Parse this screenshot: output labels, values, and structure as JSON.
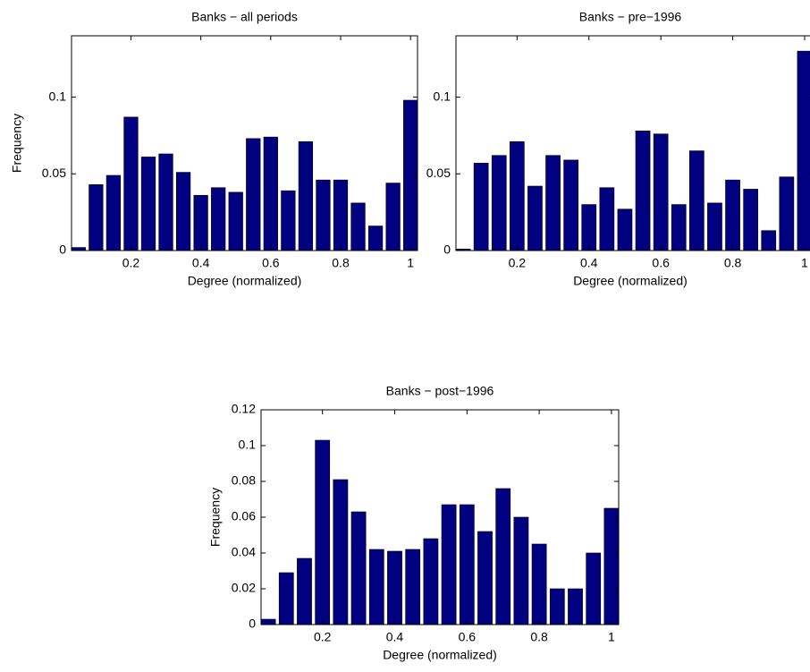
{
  "chart_data": [
    {
      "type": "bar",
      "title": "Banks − all periods",
      "xlabel": "Degree (normalized)",
      "ylabel": "Frequency",
      "color": "#000080",
      "x": [
        0.05,
        0.1,
        0.15,
        0.2,
        0.25,
        0.3,
        0.35,
        0.4,
        0.45,
        0.5,
        0.55,
        0.6,
        0.65,
        0.7,
        0.75,
        0.8,
        0.85,
        0.9,
        0.95,
        1.0
      ],
      "values": [
        0.002,
        0.043,
        0.049,
        0.087,
        0.061,
        0.063,
        0.051,
        0.036,
        0.041,
        0.038,
        0.073,
        0.074,
        0.039,
        0.071,
        0.046,
        0.046,
        0.031,
        0.016,
        0.044,
        0.098
      ],
      "xlim": [
        0.03,
        1.02
      ],
      "ylim": [
        0,
        0.14
      ],
      "xticks": [
        0.2,
        0.4,
        0.6,
        0.8,
        1
      ],
      "yticks": [
        0,
        0.05,
        0.1
      ]
    },
    {
      "type": "bar",
      "title": "Banks − pre−1996",
      "xlabel": "Degree (normalized)",
      "color": "#000080",
      "x": [
        0.05,
        0.1,
        0.15,
        0.2,
        0.25,
        0.3,
        0.35,
        0.4,
        0.45,
        0.5,
        0.55,
        0.6,
        0.65,
        0.7,
        0.75,
        0.8,
        0.85,
        0.9,
        0.95,
        1.0
      ],
      "values": [
        0.001,
        0.057,
        0.062,
        0.071,
        0.042,
        0.062,
        0.059,
        0.03,
        0.041,
        0.027,
        0.078,
        0.076,
        0.03,
        0.065,
        0.031,
        0.046,
        0.04,
        0.013,
        0.048,
        0.13
      ],
      "xlim": [
        0.03,
        1.02
      ],
      "ylim": [
        0,
        0.14
      ],
      "xticks": [
        0.2,
        0.4,
        0.6,
        0.8,
        1
      ],
      "yticks": [
        0,
        0.05,
        0.1
      ]
    },
    {
      "type": "bar",
      "title": "Banks − post−1996",
      "xlabel": "Degree (normalized)",
      "ylabel": "Frequency",
      "color": "#000080",
      "x": [
        0.05,
        0.1,
        0.15,
        0.2,
        0.25,
        0.3,
        0.35,
        0.4,
        0.45,
        0.5,
        0.55,
        0.6,
        0.65,
        0.7,
        0.75,
        0.8,
        0.85,
        0.9,
        0.95,
        1.0
      ],
      "values": [
        0.003,
        0.029,
        0.037,
        0.103,
        0.081,
        0.063,
        0.042,
        0.041,
        0.042,
        0.048,
        0.067,
        0.067,
        0.052,
        0.076,
        0.06,
        0.045,
        0.02,
        0.02,
        0.04,
        0.065
      ],
      "xlim": [
        0.03,
        1.02
      ],
      "ylim": [
        0,
        0.12
      ],
      "xticks": [
        0.2,
        0.4,
        0.6,
        0.8,
        1
      ],
      "yticks": [
        0,
        0.02,
        0.04,
        0.06,
        0.08,
        0.1,
        0.12
      ]
    }
  ]
}
